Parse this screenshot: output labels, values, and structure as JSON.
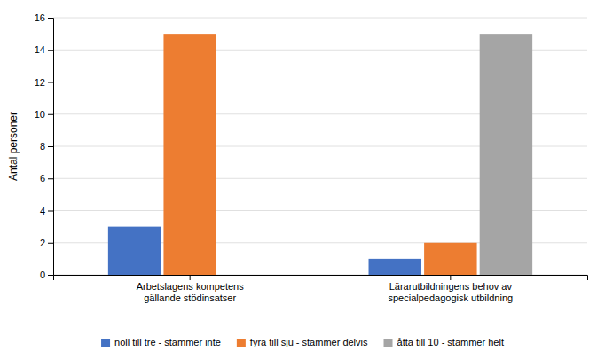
{
  "chart_data": {
    "type": "bar",
    "categories": [
      "Arbetslagens kompetens\ngällande stödinsatser",
      "Lärarutbildningens behov av\nspecialpedagogisk utbildning"
    ],
    "series": [
      {
        "name": "noll till tre - stämmer inte",
        "color": "#4472c4",
        "values": [
          3,
          1
        ]
      },
      {
        "name": "fyra till sju - stämmer delvis",
        "color": "#ed7d31",
        "values": [
          15,
          2
        ]
      },
      {
        "name": "åtta till 10 - stämmer helt",
        "color": "#a5a5a5",
        "values": [
          0,
          15
        ]
      }
    ],
    "y_label": "Antal personer",
    "ylim": [
      0,
      16
    ],
    "yticks": [
      0,
      2,
      4,
      6,
      8,
      10,
      12,
      14,
      16
    ],
    "grid": true,
    "legend": "bottom"
  }
}
